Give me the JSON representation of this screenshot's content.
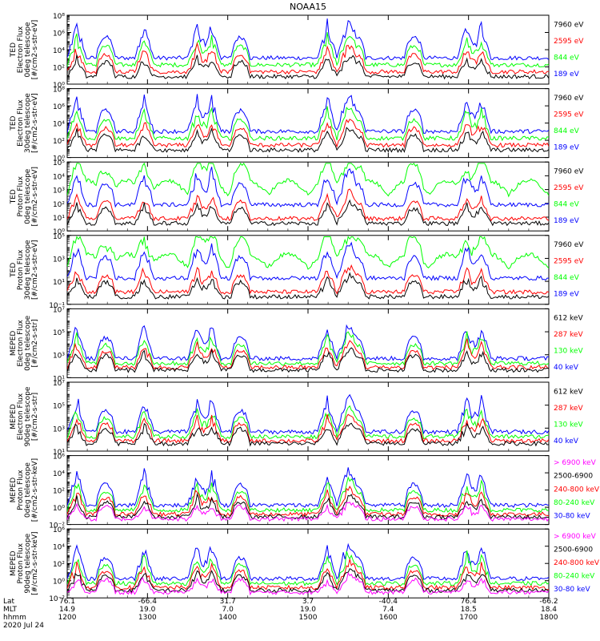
{
  "title": "NOAA15",
  "colors": {
    "blue": "#0000ff",
    "red": "#ff0000",
    "green": "#00ff00",
    "black": "#000000",
    "magenta": "#ff00ff"
  },
  "footer": {
    "rows": [
      {
        "label": "Lat",
        "values": [
          "76.1",
          "-66.4",
          "31.7",
          "3.7",
          "-40.4",
          "76.4",
          "-66.2"
        ]
      },
      {
        "label": "MLT",
        "values": [
          "14.9",
          "19.0",
          "7.0",
          "19.0",
          "7.4",
          "18.5",
          "18.4"
        ]
      },
      {
        "label": "hhmm",
        "values": [
          "1200",
          "1300",
          "1400",
          "1500",
          "1600",
          "1700",
          "1800"
        ]
      }
    ],
    "date": "2020 Jul 24"
  },
  "chart_data": [
    {
      "type": "line",
      "instrument": "TED",
      "ylabel_lines": [
        "TED",
        "Electron Flux",
        "0deg telescope",
        "[#/cm2-s-str-eV]"
      ],
      "ylim": [
        1,
        100000000
      ],
      "yscale": "log",
      "ytick_labels": [
        "10⁰",
        "10²",
        "10⁴",
        "10⁶",
        "10⁸"
      ],
      "xlim": [
        "12:00",
        "18:00"
      ],
      "series": [
        {
          "name": "7960 eV",
          "color": "black"
        },
        {
          "name": "2595 eV",
          "color": "red"
        },
        {
          "name": "844 eV",
          "color": "green"
        },
        {
          "name": "189 eV",
          "color": "blue"
        }
      ]
    },
    {
      "type": "line",
      "instrument": "TED",
      "ylabel_lines": [
        "TED",
        "Electron Flux",
        "30deg telescope",
        "[#/cm2-s-str-eV]"
      ],
      "ylim": [
        1,
        100000000
      ],
      "yscale": "log",
      "ytick_labels": [
        "10⁰",
        "10²",
        "10⁴",
        "10⁶",
        "10⁸"
      ],
      "xlim": [
        "12:00",
        "18:00"
      ],
      "series": [
        {
          "name": "7960 eV",
          "color": "black"
        },
        {
          "name": "2595 eV",
          "color": "red"
        },
        {
          "name": "844 eV",
          "color": "green"
        },
        {
          "name": "189 eV",
          "color": "blue"
        }
      ]
    },
    {
      "type": "line",
      "instrument": "TED",
      "ylabel_lines": [
        "TED",
        "Proton Flux",
        "0deg telescope",
        "[#/cm2-s-str-eV]"
      ],
      "ylim": [
        1,
        100000
      ],
      "yscale": "log",
      "ytick_labels": [
        "10⁰",
        "10¹",
        "10²",
        "10³",
        "10⁴",
        "10⁵"
      ],
      "xlim": [
        "12:00",
        "18:00"
      ],
      "series": [
        {
          "name": "7960 eV",
          "color": "black"
        },
        {
          "name": "2595 eV",
          "color": "red"
        },
        {
          "name": "844 eV",
          "color": "green"
        },
        {
          "name": "189 eV",
          "color": "blue"
        }
      ]
    },
    {
      "type": "line",
      "instrument": "TED",
      "ylabel_lines": [
        "TED",
        "Proton Flux",
        "30deg telescope",
        "[#/cm2-s-str-eV]"
      ],
      "ylim": [
        0.1,
        100000
      ],
      "yscale": "log",
      "ytick_labels": [
        "10⁻¹",
        "10¹",
        "10³",
        "10⁵"
      ],
      "xlim": [
        "12:00",
        "18:00"
      ],
      "series": [
        {
          "name": "7960 eV",
          "color": "black"
        },
        {
          "name": "2595 eV",
          "color": "red"
        },
        {
          "name": "844 eV",
          "color": "green"
        },
        {
          "name": "189 eV",
          "color": "blue"
        }
      ]
    },
    {
      "type": "line",
      "instrument": "MEPED",
      "ylabel_lines": [
        "MEPED",
        "Electron Flux",
        "0deg telescope",
        "[#/cm2-s-str]"
      ],
      "ylim": [
        10,
        10000000
      ],
      "yscale": "log",
      "ytick_labels": [
        "10¹",
        "10³",
        "10⁵",
        "10⁷"
      ],
      "xlim": [
        "12:00",
        "18:00"
      ],
      "series": [
        {
          "name": "612 keV",
          "color": "black"
        },
        {
          "name": "287 keV",
          "color": "red"
        },
        {
          "name": "130 keV",
          "color": "green"
        },
        {
          "name": "40 keV",
          "color": "blue"
        }
      ]
    },
    {
      "type": "line",
      "instrument": "MEPED",
      "ylabel_lines": [
        "MEPED",
        "Electron Flux",
        "90deg telescope",
        "[#/cm2-s-str]"
      ],
      "ylim": [
        10,
        10000000
      ],
      "yscale": "log",
      "ytick_labels": [
        "10¹",
        "10³",
        "10⁵",
        "10⁷"
      ],
      "xlim": [
        "12:00",
        "18:00"
      ],
      "series": [
        {
          "name": "612 keV",
          "color": "black"
        },
        {
          "name": "287 keV",
          "color": "red"
        },
        {
          "name": "130 keV",
          "color": "green"
        },
        {
          "name": "40 keV",
          "color": "blue"
        }
      ]
    },
    {
      "type": "line",
      "instrument": "MEPED",
      "ylabel_lines": [
        "MEPED",
        "Proton Flux",
        "0deg telescope",
        "[#/cm2-s-str-keV]"
      ],
      "ylim": [
        0.01,
        1000000
      ],
      "yscale": "log",
      "ytick_labels": [
        "10⁻²",
        "10⁰",
        "10²",
        "10⁴",
        "10⁶"
      ],
      "xlim": [
        "12:00",
        "18:00"
      ],
      "series": [
        {
          "name": "> 6900 keV",
          "color": "magenta"
        },
        {
          "name": "2500-6900",
          "color": "black"
        },
        {
          "name": "240-800 keV",
          "color": "red"
        },
        {
          "name": "80-240 keV",
          "color": "green"
        },
        {
          "name": "30-80 keV",
          "color": "blue"
        }
      ]
    },
    {
      "type": "line",
      "instrument": "MEPED",
      "ylabel_lines": [
        "MEPED",
        "Proton Flux",
        "90deg telescope",
        "[#/cm2-s-str-keV]"
      ],
      "ylim": [
        0.01,
        1000000
      ],
      "yscale": "log",
      "ytick_labels": [
        "10⁻²",
        "10⁰",
        "10²",
        "10⁴",
        "10⁶"
      ],
      "xlim": [
        "12:00",
        "18:00"
      ],
      "series": [
        {
          "name": "> 6900 keV",
          "color": "magenta"
        },
        {
          "name": "2500-6900",
          "color": "black"
        },
        {
          "name": "240-800 keV",
          "color": "red"
        },
        {
          "name": "80-240 keV",
          "color": "green"
        },
        {
          "name": "30-80 keV",
          "color": "blue"
        }
      ]
    }
  ]
}
